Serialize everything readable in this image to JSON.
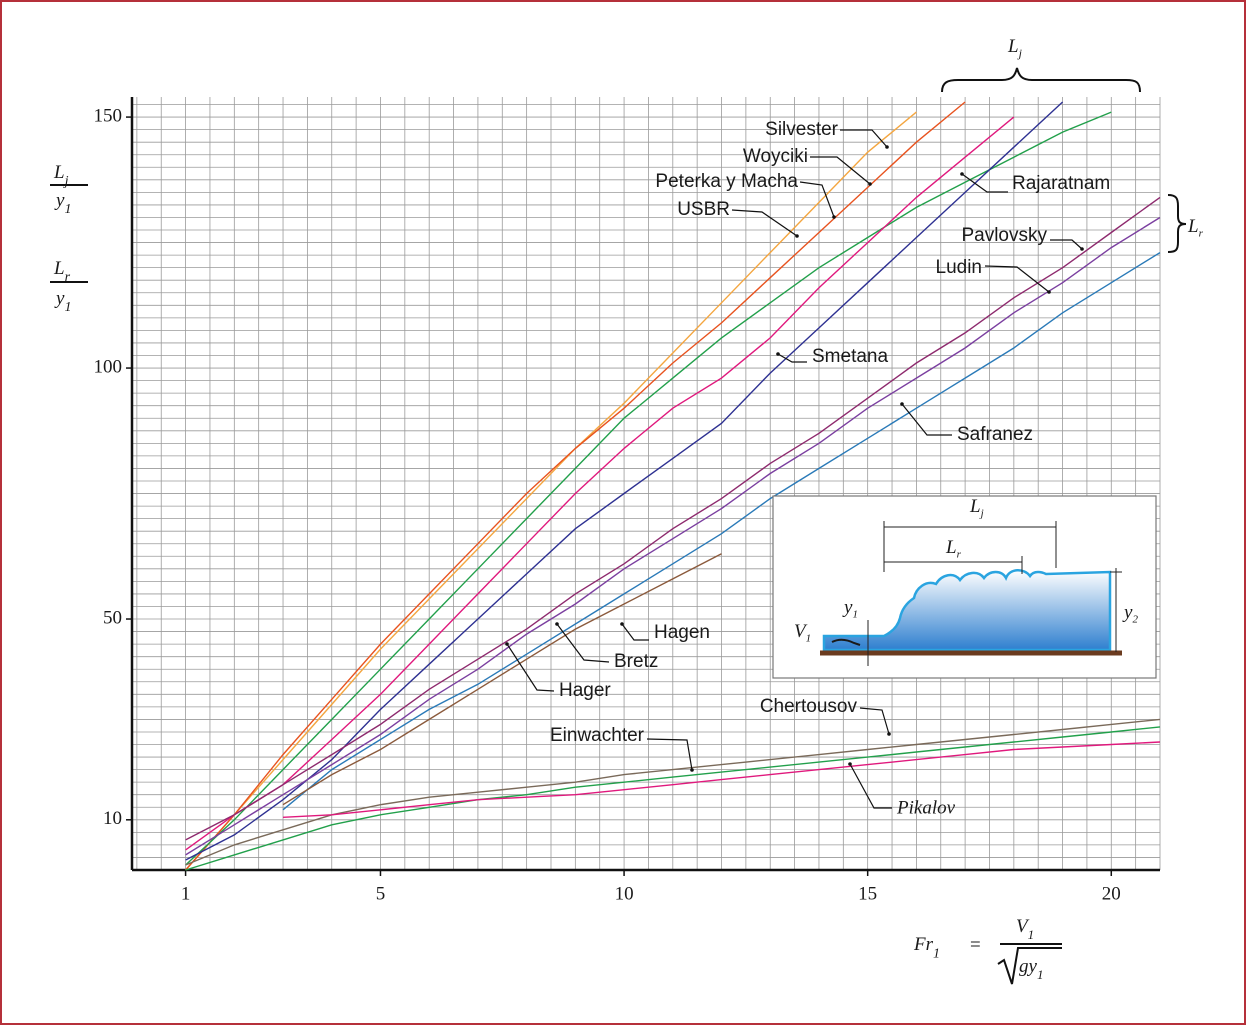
{
  "chart_data": {
    "type": "line",
    "x": [
      1,
      2,
      3,
      4,
      5,
      6,
      7,
      8,
      9,
      10,
      11,
      12,
      13,
      14,
      15,
      16,
      17,
      18,
      19,
      20,
      21
    ],
    "xlim": [
      -0.1,
      21
    ],
    "ylim": [
      0,
      154
    ],
    "xticks": [
      1,
      5,
      10,
      15,
      20
    ],
    "yticks": [
      10,
      50,
      100,
      150
    ],
    "grid": true,
    "minor_grid": {
      "x": 0.5,
      "y": 2.5
    },
    "series": [
      {
        "name": "Silvester",
        "color": "#f4a640",
        "values": [
          0,
          11,
          22,
          33,
          44,
          54,
          64,
          74,
          84,
          93,
          103,
          113,
          123,
          133,
          143,
          151,
          null,
          null,
          null,
          null,
          null
        ]
      },
      {
        "name": "Woyciki",
        "color": "#e8531f",
        "values": [
          0,
          11,
          23,
          34,
          45,
          55,
          65,
          75,
          84,
          92,
          101,
          109,
          118,
          127,
          136,
          145,
          153,
          null,
          null,
          null,
          null
        ]
      },
      {
        "color": "#22a04b",
        "values": [
          1,
          10,
          20,
          30,
          40,
          50,
          60,
          70,
          80,
          90,
          98,
          106,
          113,
          120,
          126,
          132,
          137,
          142,
          147,
          151,
          null
        ]
      },
      {
        "name": "Rajaratnam",
        "color": "#e0197d",
        "values": [
          4,
          11,
          17,
          26,
          35,
          45,
          55,
          65,
          75,
          84,
          92,
          98,
          106,
          116,
          125,
          134,
          142,
          150,
          null,
          null,
          null
        ]
      },
      {
        "name": "Smetana",
        "color": "#2e3192",
        "values": [
          2,
          7,
          14,
          22,
          32,
          41,
          50,
          59,
          68,
          75,
          82,
          89,
          99,
          108,
          117,
          126,
          135,
          144,
          153,
          null,
          null
        ]
      },
      {
        "name": "Pavlovsky",
        "color": "#8e2a6e",
        "values": [
          6,
          11,
          17,
          23,
          29,
          36,
          42,
          48,
          55,
          61,
          68,
          74,
          81,
          87,
          94,
          101,
          107,
          114,
          120,
          127,
          134
        ]
      },
      {
        "name": "Ludin",
        "color": "#7b3fa0",
        "values": [
          3,
          9,
          15,
          21,
          27,
          34,
          40,
          47,
          53,
          60,
          66,
          72,
          79,
          85,
          92,
          98,
          104,
          111,
          117,
          124,
          130
        ]
      },
      {
        "name": "Safranez",
        "color": "#2a7ab8",
        "values": [
          null,
          null,
          12,
          20,
          26,
          32,
          37,
          43,
          49,
          55,
          61,
          67,
          74,
          80,
          86,
          92,
          98,
          104,
          111,
          117,
          123
        ]
      },
      {
        "name": "Hagen",
        "color": "#8b5a3c",
        "values": [
          null,
          null,
          13,
          19,
          24,
          30,
          36,
          42,
          48,
          53,
          58,
          63,
          null,
          null,
          null,
          null,
          null,
          null,
          null,
          null,
          null
        ]
      },
      {
        "name": "Chertousov",
        "color": "#7a6a5a",
        "values": [
          1,
          5,
          8,
          11,
          13,
          14.5,
          15.5,
          16.5,
          17.5,
          19,
          20,
          21,
          22,
          23,
          24,
          25,
          26,
          27,
          28,
          29,
          30
        ]
      },
      {
        "name": "Einwachter",
        "color": "#22a04b",
        "values": [
          0,
          3,
          6,
          9,
          11,
          12.5,
          14,
          15,
          16.5,
          17.5,
          18.5,
          19.5,
          20.5,
          21.5,
          22.5,
          23.5,
          24.5,
          25.5,
          26.5,
          27.5,
          28.5
        ]
      },
      {
        "name": "Pikalov",
        "color": "#e0197d",
        "values": [
          null,
          null,
          10.5,
          11,
          12,
          13,
          14,
          14.5,
          15,
          16,
          17,
          18,
          19,
          20,
          21,
          22,
          23,
          24,
          24.5,
          25,
          25.5
        ]
      }
    ],
    "annotations": [
      "Peterka y Macha",
      "USBR",
      "Bretz",
      "Hager"
    ],
    "y_labels": [
      {
        "numerator": "L",
        "numerator_sub": "j",
        "denominator": "y",
        "denominator_sub": "1"
      },
      {
        "numerator": "L",
        "numerator_sub": "r",
        "denominator": "y",
        "denominator_sub": "1"
      }
    ],
    "x_label": {
      "lhs": "Fr",
      "lhs_sub": "1",
      "equals": "=",
      "numerator": "V",
      "numerator_sub": "1",
      "radicand": "gy",
      "radicand_sub": "1"
    },
    "brackets": [
      {
        "main": "L",
        "sub": "j"
      },
      {
        "main": "L",
        "sub": "r"
      }
    ],
    "inset": {
      "lj": {
        "main": "L",
        "sub": "j"
      },
      "lr": {
        "main": "L",
        "sub": "r"
      },
      "y1": {
        "main": "y",
        "sub": "1"
      },
      "y2": {
        "main": "y",
        "sub": "2"
      },
      "v1": {
        "main": "V",
        "sub": "1"
      }
    }
  }
}
